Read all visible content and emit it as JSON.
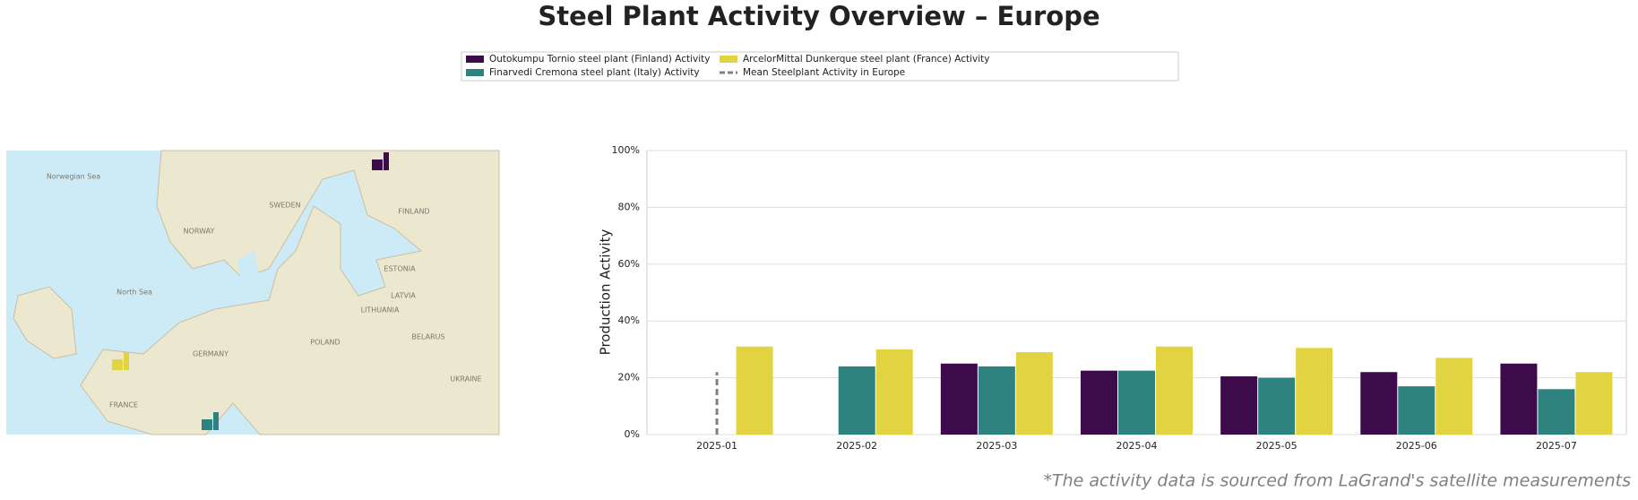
{
  "chart_data": {
    "type": "bar",
    "title": "Steel Plant Activity Overview – Europe",
    "ylabel": "Production Activity",
    "footnote": "*The activity data is sourced from LaGrand's satellite measurements",
    "categories": [
      "2025-01",
      "2025-02",
      "2025-03",
      "2025-04",
      "2025-05",
      "2025-06",
      "2025-07"
    ],
    "series": [
      {
        "name": "Outokumpu Tornio steel plant (Finland) Activity",
        "color": "#3d0b49",
        "values": [
          null,
          null,
          25,
          22.5,
          20.5,
          22,
          25
        ]
      },
      {
        "name": "Finarvedi Cremona steel plant (Italy) Activity",
        "color": "#2e8380",
        "values": [
          null,
          24,
          24,
          22.5,
          20,
          17,
          16
        ]
      },
      {
        "name": "ArcelorMittal Dunkerque steel plant (France) Activity",
        "color": "#e2d341",
        "values": [
          31,
          30,
          29,
          31,
          30.5,
          27,
          22
        ]
      },
      {
        "name": "Mean Steelplant Activity in Europe",
        "color": "#808080",
        "kind": "dashed-line",
        "values": [
          22,
          null,
          null,
          null,
          null,
          null,
          null
        ]
      }
    ],
    "ylim": [
      0,
      100
    ],
    "yticks": [
      {
        "value": 0,
        "label": "0%"
      },
      {
        "value": 20,
        "label": "20%"
      },
      {
        "value": 40,
        "label": "40%"
      },
      {
        "value": 60,
        "label": "60%"
      },
      {
        "value": 80,
        "label": "80%"
      },
      {
        "value": 100,
        "label": "100%"
      }
    ],
    "grid": true
  },
  "map": {
    "labels": [
      "Norwegian Sea",
      "NORWAY",
      "SWEDEN",
      "FINLAND",
      "ESTONIA",
      "LATVIA",
      "LITHUANIA",
      "North Sea",
      "BELARUS",
      "POLAND",
      "GERMANY",
      "UKRAINE",
      "FRANCE"
    ]
  }
}
